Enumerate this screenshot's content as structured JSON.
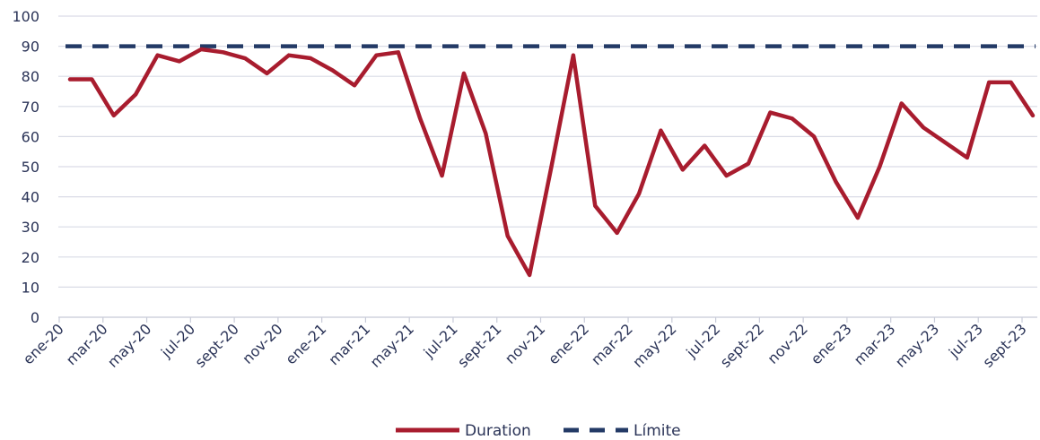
{
  "chart_data": {
    "type": "line",
    "title": "",
    "xlabel": "",
    "ylabel": "",
    "ylim": [
      0,
      100
    ],
    "yticks": [
      0,
      10,
      20,
      30,
      40,
      50,
      60,
      70,
      80,
      90,
      100
    ],
    "grid": true,
    "legend_position": "bottom",
    "x": [
      "ene-20",
      "feb-20",
      "mar-20",
      "abr-20",
      "may-20",
      "jun-20",
      "jul-20",
      "ago-20",
      "sept-20",
      "oct-20",
      "nov-20",
      "dic-20",
      "ene-21",
      "feb-21",
      "mar-21",
      "abr-21",
      "may-21",
      "jun-21",
      "jul-21",
      "ago-21",
      "sept-21",
      "oct-21",
      "nov-21",
      "dic-21",
      "ene-22",
      "feb-22",
      "mar-22",
      "abr-22",
      "may-22",
      "jun-22",
      "jul-22",
      "ago-22",
      "sept-22",
      "oct-22",
      "nov-22",
      "dic-22",
      "ene-23",
      "feb-23",
      "mar-23",
      "abr-23",
      "may-23",
      "jun-23",
      "jul-23",
      "ago-23",
      "sept-23"
    ],
    "xtick_labels": [
      "ene-20",
      "mar-20",
      "may-20",
      "jul-20",
      "sept-20",
      "nov-20",
      "ene-21",
      "mar-21",
      "may-21",
      "jul-21",
      "sept-21",
      "nov-21",
      "ene-22",
      "mar-22",
      "may-22",
      "jul-22",
      "sept-22",
      "nov-22",
      "ene-23",
      "mar-23",
      "may-23",
      "jul-23",
      "sept-23"
    ],
    "series": [
      {
        "name": "Duration",
        "color": "#a81c2e",
        "style": "solid",
        "values": [
          79,
          79,
          67,
          74,
          87,
          85,
          89,
          88,
          86,
          81,
          87,
          86,
          82,
          77,
          87,
          88,
          66,
          47,
          81,
          61,
          27,
          14,
          50,
          87,
          37,
          28,
          41,
          62,
          49,
          57,
          47,
          51,
          68,
          66,
          60,
          45,
          33,
          50,
          71,
          63,
          58,
          53,
          78,
          78,
          67
        ]
      },
      {
        "name": "Límite",
        "color": "#233a66",
        "style": "dashed",
        "values": [
          90,
          90,
          90,
          90,
          90,
          90,
          90,
          90,
          90,
          90,
          90,
          90,
          90,
          90,
          90,
          90,
          90,
          90,
          90,
          90,
          90,
          90,
          90,
          90,
          90,
          90,
          90,
          90,
          90,
          90,
          90,
          90,
          90,
          90,
          90,
          90,
          90,
          90,
          90,
          90,
          90,
          90,
          90,
          90,
          90
        ]
      }
    ],
    "colors": {
      "axis_text": "#2a3357",
      "grid": "#d9dbe6",
      "axis": "#c8cbd8"
    }
  }
}
